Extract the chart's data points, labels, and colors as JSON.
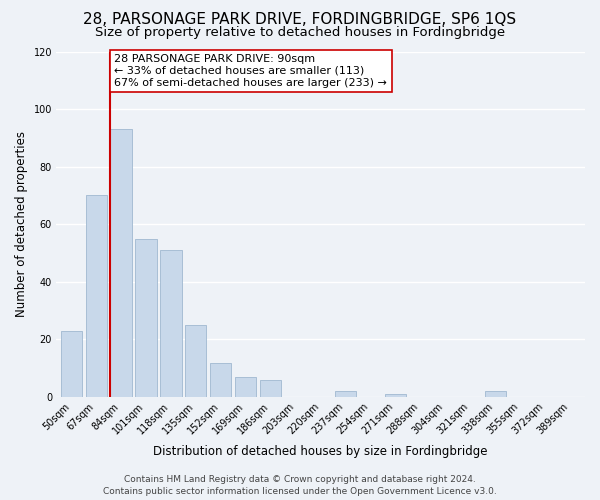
{
  "title": "28, PARSONAGE PARK DRIVE, FORDINGBRIDGE, SP6 1QS",
  "subtitle": "Size of property relative to detached houses in Fordingbridge",
  "xlabel": "Distribution of detached houses by size in Fordingbridge",
  "ylabel": "Number of detached properties",
  "bar_color": "#c8d8ea",
  "bar_edge_color": "#a0b8d0",
  "background_color": "#eef2f7",
  "grid_color": "#ffffff",
  "annotation_line_color": "#cc0000",
  "annotation_box_text": "28 PARSONAGE PARK DRIVE: 90sqm\n← 33% of detached houses are smaller (113)\n67% of semi-detached houses are larger (233) →",
  "footer_line1": "Contains HM Land Registry data © Crown copyright and database right 2024.",
  "footer_line2": "Contains public sector information licensed under the Open Government Licence v3.0.",
  "categories": [
    "50sqm",
    "67sqm",
    "84sqm",
    "101sqm",
    "118sqm",
    "135sqm",
    "152sqm",
    "169sqm",
    "186sqm",
    "203sqm",
    "220sqm",
    "237sqm",
    "254sqm",
    "271sqm",
    "288sqm",
    "304sqm",
    "321sqm",
    "338sqm",
    "355sqm",
    "372sqm",
    "389sqm"
  ],
  "values": [
    23,
    70,
    93,
    55,
    51,
    25,
    12,
    7,
    6,
    0,
    0,
    2,
    0,
    1,
    0,
    0,
    0,
    2,
    0,
    0,
    0
  ],
  "ylim": [
    0,
    120
  ],
  "yticks": [
    0,
    20,
    40,
    60,
    80,
    100,
    120
  ],
  "red_line_bin_index": 2,
  "title_fontsize": 11,
  "subtitle_fontsize": 9.5,
  "axis_label_fontsize": 8.5,
  "tick_fontsize": 7,
  "annotation_fontsize": 8,
  "footer_fontsize": 6.5
}
